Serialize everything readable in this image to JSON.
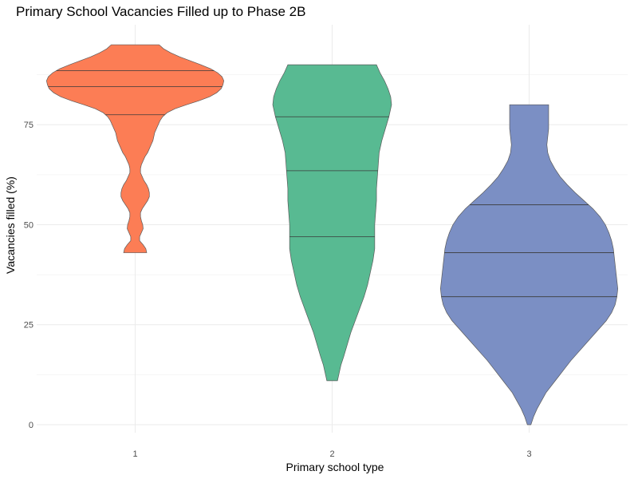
{
  "chart_data": {
    "type": "violin",
    "title": "Primary School Vacancies Filled up to Phase 2B",
    "xlabel": "Primary school type",
    "ylabel": "Vacancies filled (%)",
    "categories": [
      "1",
      "2",
      "3"
    ],
    "ylim": [
      -2,
      100
    ],
    "y_ticks": [
      0,
      25,
      50,
      75
    ],
    "y_tick_labels": [
      "0",
      "25",
      "50",
      "75"
    ],
    "grid": true,
    "legend": "none",
    "series": [
      {
        "category": "1",
        "color": "#fc7d55",
        "min": 43,
        "max": 95,
        "quantiles": [
          77.5,
          84.5,
          88.5
        ],
        "density_y": [
          43,
          44,
          45,
          46,
          47,
          48,
          49,
          50,
          51,
          52,
          53,
          54,
          55,
          56,
          57,
          58,
          59,
          60,
          61,
          62,
          63,
          64,
          65,
          66,
          67,
          68,
          69,
          70,
          71,
          72,
          73,
          74,
          75,
          76,
          77,
          78,
          79,
          80,
          81,
          82,
          83,
          84,
          85,
          86,
          87,
          88,
          89,
          90,
          91,
          92,
          93,
          94,
          95
        ],
        "density_width": [
          0.13,
          0.12,
          0.09,
          0.05,
          0.05,
          0.07,
          0.09,
          0.085,
          0.07,
          0.06,
          0.06,
          0.08,
          0.11,
          0.14,
          0.16,
          0.16,
          0.15,
          0.13,
          0.1,
          0.08,
          0.06,
          0.06,
          0.07,
          0.09,
          0.11,
          0.14,
          0.16,
          0.18,
          0.2,
          0.21,
          0.22,
          0.24,
          0.26,
          0.28,
          0.31,
          0.36,
          0.45,
          0.58,
          0.72,
          0.84,
          0.92,
          0.97,
          0.99,
          1.0,
          0.98,
          0.93,
          0.85,
          0.74,
          0.62,
          0.5,
          0.4,
          0.32,
          0.27
        ]
      },
      {
        "category": "2",
        "color": "#58ba92",
        "min": 11,
        "max": 90,
        "quantiles": [
          47,
          63.5,
          77
        ],
        "density_y": [
          11,
          12,
          13,
          15,
          17,
          20,
          23,
          26,
          29,
          32,
          35,
          38,
          41,
          44,
          47,
          50,
          53,
          56,
          59,
          62,
          65,
          68,
          71,
          74,
          77,
          80,
          82,
          84,
          86,
          88,
          90
        ],
        "density_width": [
          0.06,
          0.07,
          0.08,
          0.1,
          0.13,
          0.17,
          0.21,
          0.26,
          0.31,
          0.36,
          0.4,
          0.43,
          0.46,
          0.48,
          0.48,
          0.48,
          0.49,
          0.5,
          0.5,
          0.51,
          0.52,
          0.53,
          0.56,
          0.6,
          0.64,
          0.67,
          0.66,
          0.63,
          0.59,
          0.54,
          0.5
        ]
      },
      {
        "category": "3",
        "color": "#7b8fc4",
        "min": 0,
        "max": 80,
        "quantiles": [
          32,
          43,
          55
        ],
        "density_y": [
          0,
          2,
          4,
          6,
          8,
          10,
          12,
          14,
          16,
          18,
          20,
          22,
          24,
          26,
          28,
          30,
          32,
          34,
          36,
          38,
          40,
          42,
          44,
          46,
          48,
          50,
          52,
          54,
          56,
          58,
          60,
          62,
          64,
          66,
          68,
          70,
          72,
          74,
          76,
          78,
          80
        ],
        "density_width": [
          0.02,
          0.05,
          0.09,
          0.14,
          0.19,
          0.26,
          0.33,
          0.4,
          0.47,
          0.55,
          0.63,
          0.71,
          0.79,
          0.87,
          0.93,
          0.97,
          0.99,
          1.0,
          0.99,
          0.98,
          0.97,
          0.96,
          0.95,
          0.93,
          0.9,
          0.86,
          0.8,
          0.72,
          0.62,
          0.52,
          0.43,
          0.35,
          0.29,
          0.24,
          0.21,
          0.2,
          0.21,
          0.22,
          0.22,
          0.22,
          0.22
        ]
      }
    ]
  }
}
